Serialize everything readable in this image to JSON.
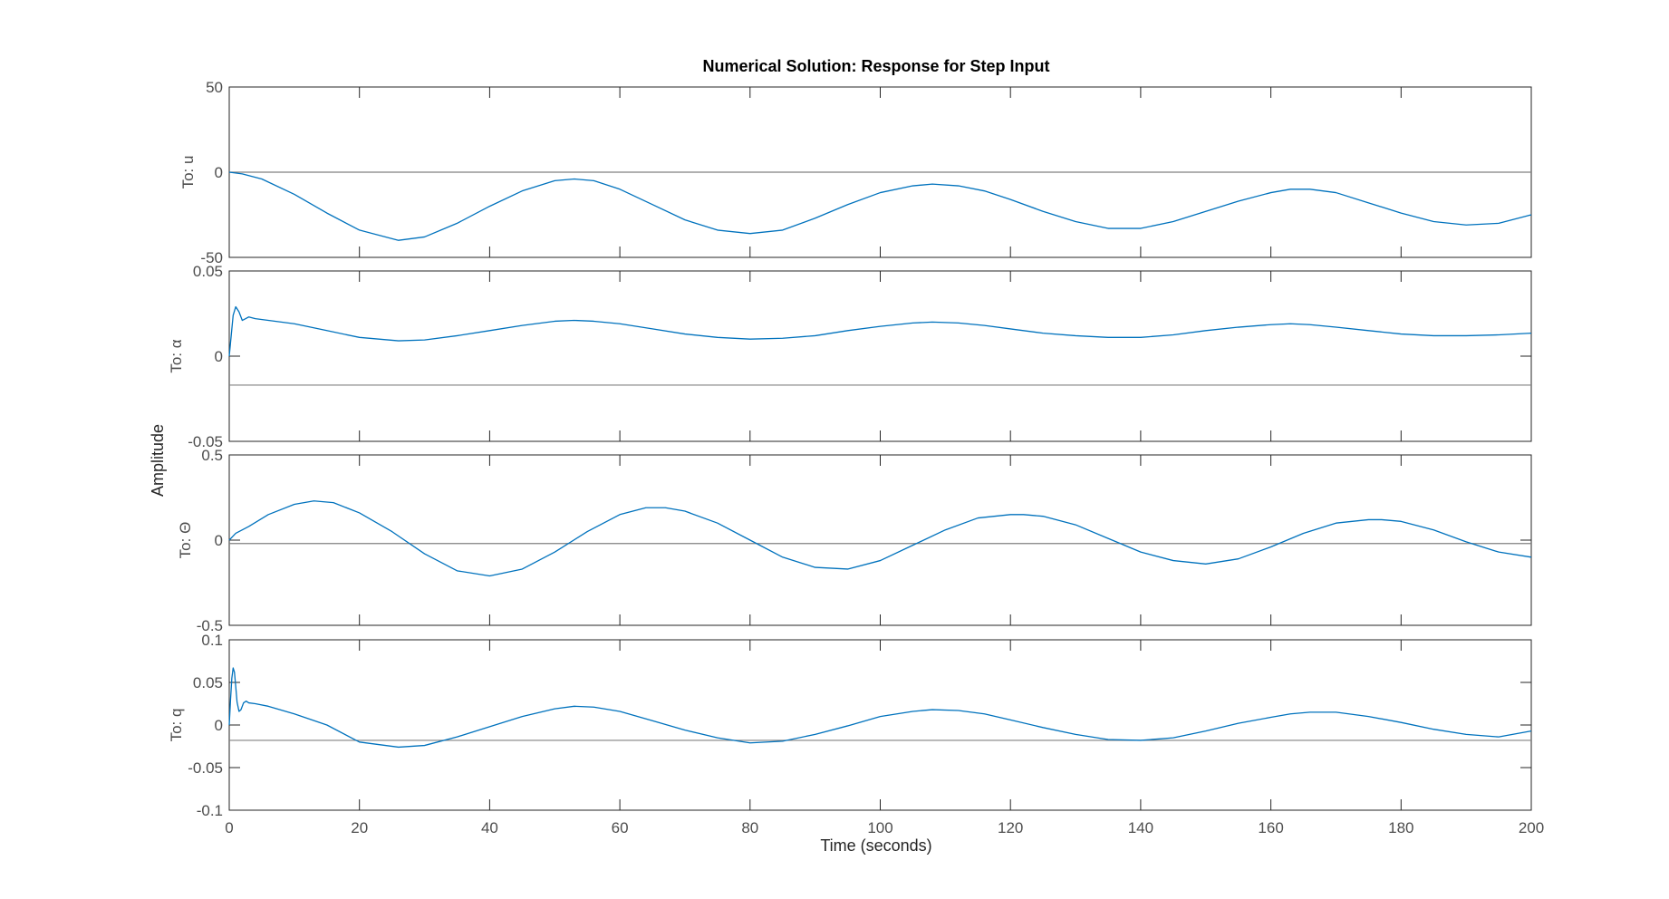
{
  "chart_data": {
    "type": "line",
    "title": "Numerical Solution: Response for Step Input",
    "xlabel": "Time (seconds)",
    "ylabel": "Amplitude",
    "xlim": [
      0,
      200
    ],
    "xticks": [
      "0",
      "20",
      "40",
      "60",
      "80",
      "100",
      "120",
      "140",
      "160",
      "180",
      "200"
    ],
    "grid": false,
    "line_color": "#0072BD",
    "reference_color": "#808080",
    "frame_color": "#262626",
    "panels": [
      {
        "channel_label": "To: u",
        "ylim": [
          -50,
          50
        ],
        "yticks": [
          "50",
          "0",
          "-50"
        ],
        "reference_line": 0,
        "series": {
          "x": [
            0,
            2,
            5,
            10,
            15,
            20,
            26,
            30,
            35,
            40,
            45,
            50,
            53,
            56,
            60,
            65,
            70,
            75,
            80,
            85,
            90,
            95,
            100,
            105,
            108,
            112,
            116,
            120,
            125,
            130,
            135,
            140,
            145,
            150,
            155,
            160,
            163,
            166,
            170,
            175,
            180,
            185,
            190,
            195,
            200
          ],
          "y": [
            0,
            -1,
            -4,
            -13,
            -24,
            -34,
            -40,
            -38,
            -30,
            -20,
            -11,
            -5,
            -4,
            -5,
            -10,
            -19,
            -28,
            -34,
            -36,
            -34,
            -27,
            -19,
            -12,
            -8,
            -7,
            -8,
            -11,
            -16,
            -23,
            -29,
            -33,
            -33,
            -29,
            -23,
            -17,
            -12,
            -10,
            -10,
            -12,
            -18,
            -24,
            -29,
            -31,
            -30,
            -25
          ]
        }
      },
      {
        "channel_label": "To: α",
        "ylim": [
          -0.05,
          0.05
        ],
        "yticks": [
          "0.05",
          "0",
          "-0.05"
        ],
        "reference_line": -0.017,
        "series": {
          "x": [
            0,
            0.3,
            0.6,
            1.0,
            1.5,
            2.0,
            2.5,
            3.0,
            4.0,
            6.0,
            10,
            15,
            20,
            26,
            30,
            35,
            40,
            45,
            50,
            53,
            56,
            60,
            65,
            70,
            75,
            80,
            85,
            90,
            95,
            100,
            105,
            108,
            112,
            116,
            120,
            125,
            130,
            135,
            140,
            145,
            150,
            155,
            160,
            163,
            166,
            170,
            175,
            180,
            185,
            190,
            195,
            200
          ],
          "y": [
            0,
            0.012,
            0.024,
            0.029,
            0.026,
            0.021,
            0.022,
            0.023,
            0.022,
            0.021,
            0.019,
            0.015,
            0.011,
            0.009,
            0.0095,
            0.012,
            0.015,
            0.018,
            0.0205,
            0.021,
            0.0205,
            0.019,
            0.016,
            0.013,
            0.011,
            0.01,
            0.0105,
            0.012,
            0.015,
            0.0175,
            0.0195,
            0.02,
            0.0195,
            0.018,
            0.016,
            0.0135,
            0.012,
            0.011,
            0.011,
            0.0125,
            0.015,
            0.017,
            0.0185,
            0.019,
            0.0185,
            0.017,
            0.015,
            0.013,
            0.012,
            0.012,
            0.0125,
            0.0135
          ]
        }
      },
      {
        "channel_label": "To: Θ",
        "ylim": [
          -0.5,
          0.5
        ],
        "yticks": [
          "0.5",
          "0",
          "-0.5"
        ],
        "reference_line": -0.02,
        "series": {
          "x": [
            0,
            1,
            3,
            6,
            10,
            13,
            16,
            20,
            25,
            30,
            35,
            40,
            45,
            50,
            55,
            60,
            64,
            67,
            70,
            75,
            80,
            85,
            90,
            95,
            100,
            105,
            110,
            115,
            120,
            122,
            125,
            130,
            135,
            140,
            145,
            150,
            155,
            160,
            165,
            170,
            175,
            177,
            180,
            185,
            190,
            195,
            200
          ],
          "y": [
            0,
            0.04,
            0.08,
            0.15,
            0.21,
            0.23,
            0.22,
            0.16,
            0.05,
            -0.08,
            -0.18,
            -0.21,
            -0.17,
            -0.07,
            0.05,
            0.15,
            0.19,
            0.19,
            0.17,
            0.1,
            0.0,
            -0.1,
            -0.16,
            -0.17,
            -0.12,
            -0.03,
            0.06,
            0.13,
            0.15,
            0.15,
            0.14,
            0.09,
            0.01,
            -0.07,
            -0.12,
            -0.14,
            -0.11,
            -0.04,
            0.04,
            0.1,
            0.12,
            0.12,
            0.11,
            0.06,
            -0.01,
            -0.07,
            -0.1
          ]
        }
      },
      {
        "channel_label": "To: q",
        "ylim": [
          -0.1,
          0.1
        ],
        "yticks": [
          "0.1",
          "0.05",
          "0",
          "-0.05",
          "-0.1"
        ],
        "reference_line": -0.018,
        "series": {
          "x": [
            0,
            0.2,
            0.4,
            0.6,
            0.8,
            1.0,
            1.2,
            1.5,
            1.8,
            2.2,
            2.6,
            3.0,
            4.0,
            6.0,
            10,
            15,
            20,
            26,
            30,
            35,
            40,
            45,
            50,
            53,
            56,
            60,
            65,
            70,
            75,
            80,
            85,
            90,
            95,
            100,
            105,
            108,
            112,
            116,
            120,
            125,
            130,
            135,
            140,
            145,
            150,
            155,
            160,
            163,
            166,
            170,
            175,
            180,
            185,
            190,
            195,
            200
          ],
          "y": [
            0,
            0.03,
            0.055,
            0.067,
            0.062,
            0.045,
            0.027,
            0.016,
            0.018,
            0.026,
            0.028,
            0.026,
            0.025,
            0.022,
            0.013,
            0.0,
            -0.02,
            -0.026,
            -0.024,
            -0.014,
            -0.002,
            0.01,
            0.019,
            0.022,
            0.021,
            0.016,
            0.005,
            -0.006,
            -0.015,
            -0.021,
            -0.019,
            -0.011,
            -0.001,
            0.01,
            0.016,
            0.018,
            0.017,
            0.013,
            0.006,
            -0.003,
            -0.011,
            -0.017,
            -0.018,
            -0.015,
            -0.007,
            0.002,
            0.009,
            0.013,
            0.015,
            0.015,
            0.01,
            0.003,
            -0.005,
            -0.011,
            -0.014,
            -0.007
          ]
        }
      }
    ]
  }
}
